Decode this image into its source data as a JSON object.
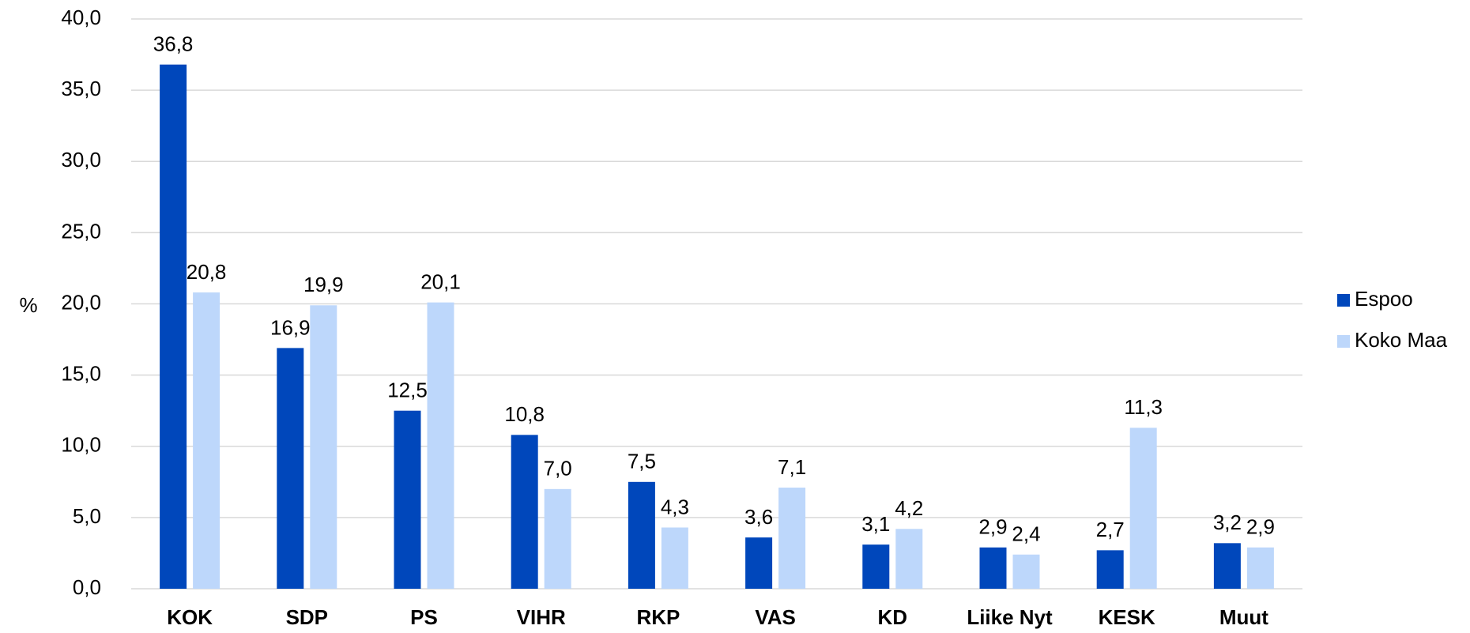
{
  "chart_data": {
    "type": "bar",
    "y_label": "%",
    "categories": [
      "KOK",
      "SDP",
      "PS",
      "VIHR",
      "RKP",
      "VAS",
      "KD",
      "Liike Nyt",
      "KESK",
      "Muut"
    ],
    "series": [
      {
        "name": "Espoo",
        "color": "#0047bb",
        "values": [
          36.8,
          16.9,
          12.5,
          10.8,
          7.5,
          3.6,
          3.1,
          2.9,
          2.7,
          3.2
        ],
        "value_labels": [
          "36,8",
          "16,9",
          "12,5",
          "10,8",
          "7,5",
          "3,6",
          "3,1",
          "2,9",
          "2,7",
          "3,2"
        ]
      },
      {
        "name": "Koko Maa",
        "color": "#bdd7fb",
        "values": [
          20.8,
          19.9,
          20.1,
          7.0,
          4.3,
          7.1,
          4.2,
          2.4,
          11.3,
          2.9
        ],
        "value_labels": [
          "20,8",
          "19,9",
          "20,1",
          "7,0",
          "4,3",
          "7,1",
          "4,2",
          "2,4",
          "11,3",
          "2,9"
        ]
      }
    ],
    "ylim": [
      0,
      40
    ],
    "yticks": [
      {
        "value": 0,
        "label": "0,0"
      },
      {
        "value": 5,
        "label": "5,0"
      },
      {
        "value": 10,
        "label": "10,0"
      },
      {
        "value": 15,
        "label": "15,0"
      },
      {
        "value": 20,
        "label": "20,0"
      },
      {
        "value": 25,
        "label": "25,0"
      },
      {
        "value": 30,
        "label": "30,0"
      },
      {
        "value": 35,
        "label": "35,0"
      },
      {
        "value": 40,
        "label": "40,0"
      }
    ],
    "grid": true,
    "legend": "right"
  }
}
